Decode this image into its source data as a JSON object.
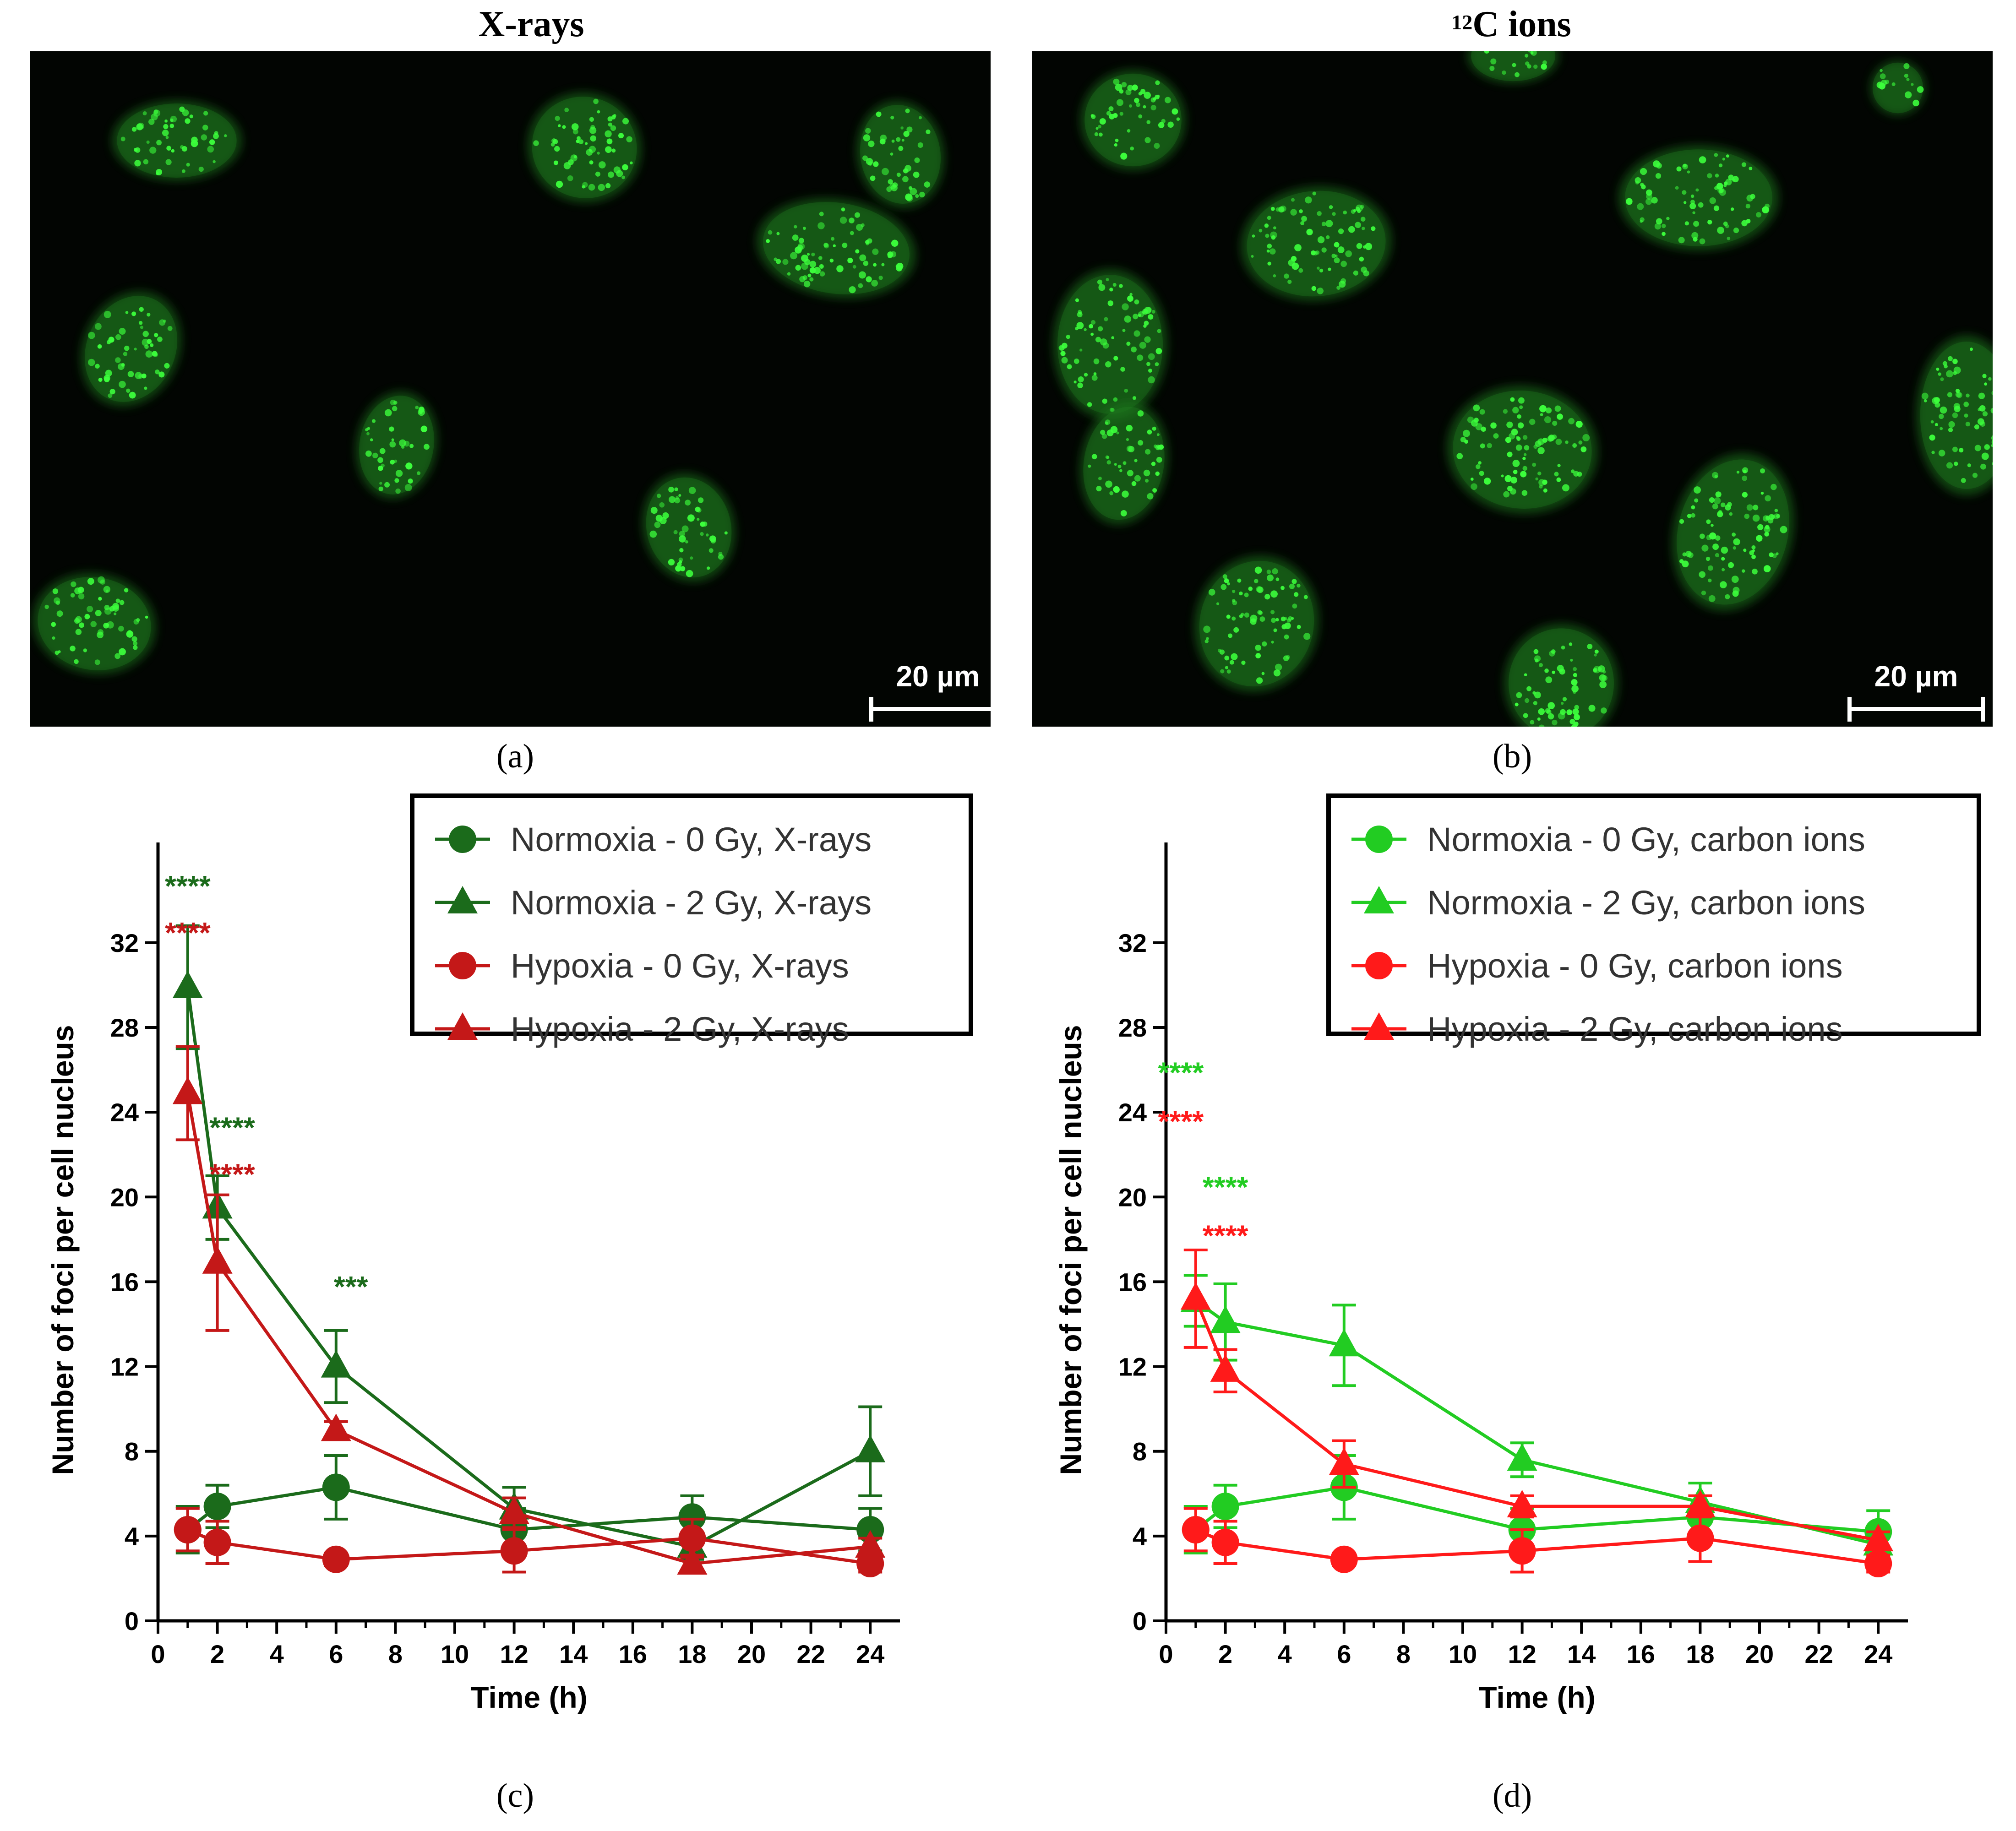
{
  "panels": {
    "a": {
      "title": "X-rays",
      "caption": "(a)",
      "scale_label": "20 µm"
    },
    "b": {
      "title_sup": "12",
      "title_main": "C ions",
      "caption": "(b)",
      "scale_label": "20 µm"
    },
    "c": {
      "caption": "(c)"
    },
    "d": {
      "caption": "(d)"
    }
  },
  "colors": {
    "dark_green": "#1b6b1b",
    "dark_red": "#c41818",
    "light_green": "#22cc22",
    "light_red": "#ff1a1a",
    "micro_bg": "#020502",
    "nucleus": "#1f7a1f",
    "focus": "#3cff3c"
  },
  "chart_data": [
    {
      "id": "c",
      "type": "line",
      "xlabel": "Time (h)",
      "ylabel": "Number of foci per cell nucleus",
      "xlim": [
        0,
        25
      ],
      "ylim": [
        0,
        35
      ],
      "xticks": [
        0,
        2,
        4,
        6,
        8,
        10,
        12,
        14,
        16,
        18,
        20,
        22,
        24
      ],
      "yticks": [
        0,
        4,
        8,
        12,
        16,
        20,
        24,
        28,
        32
      ],
      "series": [
        {
          "name": "Normoxia - 0 Gy, X-rays",
          "marker": "circle",
          "color": "#1b6b1b",
          "x": [
            1,
            2,
            6,
            12,
            18,
            24
          ],
          "y": [
            4.3,
            5.4,
            6.3,
            4.3,
            4.9,
            4.3
          ],
          "err": [
            1.1,
            1.0,
            1.5,
            1.0,
            1.0,
            1.0
          ]
        },
        {
          "name": "Normoxia - 2 Gy, X-rays",
          "marker": "triangle",
          "color": "#1b6b1b",
          "x": [
            1,
            2,
            6,
            12,
            18,
            24
          ],
          "y": [
            29.9,
            19.5,
            12.0,
            5.3,
            3.5,
            8.0
          ],
          "err": [
            2.9,
            1.5,
            1.7,
            1.0,
            0.6,
            2.1
          ]
        },
        {
          "name": "Hypoxia - 0 Gy, X-rays",
          "marker": "circle",
          "color": "#c41818",
          "x": [
            1,
            2,
            6,
            12,
            18,
            24
          ],
          "y": [
            4.3,
            3.7,
            2.9,
            3.3,
            3.9,
            2.7
          ],
          "err": [
            1.0,
            1.0,
            0.3,
            1.0,
            0.9,
            0.4
          ]
        },
        {
          "name": "Hypoxia - 2 Gy, X-rays",
          "marker": "triangle",
          "color": "#c41818",
          "x": [
            1,
            2,
            6,
            12,
            18,
            24
          ],
          "y": [
            24.9,
            16.9,
            9.0,
            5.1,
            2.7,
            3.5
          ],
          "err": [
            2.2,
            3.2,
            0.4,
            0.7,
            0.4,
            0.4
          ]
        }
      ],
      "annotations": [
        {
          "text": "****",
          "x": 1,
          "y": 34.2,
          "color": "#1b6b1b"
        },
        {
          "text": "****",
          "x": 1,
          "y": 32.0,
          "color": "#c41818"
        },
        {
          "text": "****",
          "x": 2.5,
          "y": 22.8,
          "color": "#1b6b1b"
        },
        {
          "text": "****",
          "x": 2.5,
          "y": 20.6,
          "color": "#c41818"
        },
        {
          "text": "***",
          "x": 6.5,
          "y": 15.3,
          "color": "#1b6b1b"
        }
      ],
      "legend": "top-right"
    },
    {
      "id": "d",
      "type": "line",
      "xlabel": "Time (h)",
      "ylabel": "Number of foci per cell nucleus",
      "xlim": [
        0,
        25
      ],
      "ylim": [
        0,
        35
      ],
      "xticks": [
        0,
        2,
        4,
        6,
        8,
        10,
        12,
        14,
        16,
        18,
        20,
        22,
        24
      ],
      "yticks": [
        0,
        4,
        8,
        12,
        16,
        20,
        24,
        28,
        32
      ],
      "series": [
        {
          "name": "Normoxia - 0 Gy, carbon ions",
          "marker": "circle",
          "color": "#22cc22",
          "x": [
            1,
            2,
            6,
            12,
            18,
            24
          ],
          "y": [
            4.3,
            5.4,
            6.3,
            4.3,
            4.9,
            4.2
          ],
          "err": [
            1.1,
            1.0,
            1.5,
            1.0,
            1.0,
            1.0
          ]
        },
        {
          "name": "Normoxia - 2 Gy, carbon ions",
          "marker": "triangle",
          "color": "#22cc22",
          "x": [
            1,
            2,
            6,
            12,
            18,
            24
          ],
          "y": [
            15.1,
            14.1,
            13.0,
            7.6,
            5.6,
            3.6
          ],
          "err": [
            1.2,
            1.8,
            1.9,
            0.8,
            0.9,
            0.6
          ]
        },
        {
          "name": "Hypoxia - 0 Gy, carbon ions",
          "marker": "circle",
          "color": "#ff1a1a",
          "x": [
            1,
            2,
            6,
            12,
            18,
            24
          ],
          "y": [
            4.3,
            3.7,
            2.9,
            3.3,
            3.9,
            2.7
          ],
          "err": [
            1.0,
            1.0,
            0.3,
            1.0,
            1.1,
            0.4
          ]
        },
        {
          "name": "Hypoxia - 2 Gy, carbon ions",
          "marker": "triangle",
          "color": "#ff1a1a",
          "x": [
            1,
            2,
            6,
            12,
            18,
            24
          ],
          "y": [
            15.2,
            11.8,
            7.4,
            5.4,
            5.4,
            3.8
          ],
          "err": [
            2.3,
            1.0,
            1.1,
            0.5,
            0.5,
            0.4
          ]
        }
      ],
      "annotations": [
        {
          "text": "****",
          "x": 0.5,
          "y": 25.4,
          "color": "#22cc22"
        },
        {
          "text": "****",
          "x": 0.5,
          "y": 23.1,
          "color": "#ff1a1a"
        },
        {
          "text": "****",
          "x": 2,
          "y": 20.0,
          "color": "#22cc22"
        },
        {
          "text": "****",
          "x": 2,
          "y": 17.7,
          "color": "#ff1a1a"
        }
      ],
      "legend": "top-right"
    }
  ]
}
